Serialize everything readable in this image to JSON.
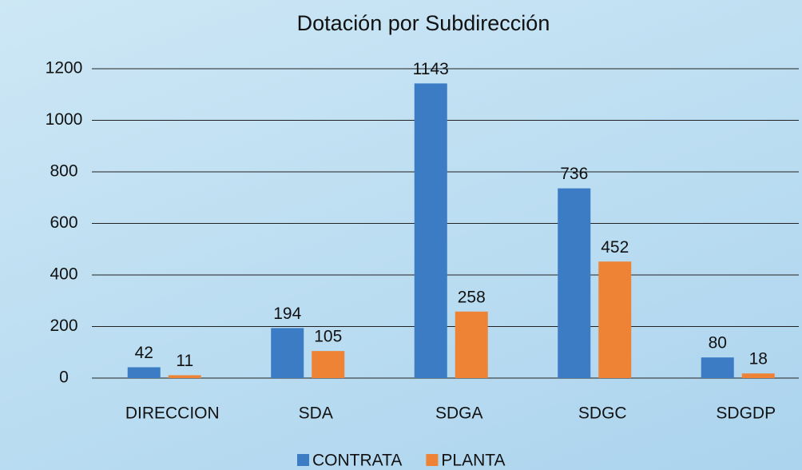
{
  "chart_data": {
    "type": "bar",
    "title": "Dotación por Subdirección",
    "categories": [
      "DIRECCION",
      "SDA",
      "SDGA",
      "SDGC",
      "SDGDP"
    ],
    "series": [
      {
        "name": "CONTRATA",
        "color": "#3b7cc4",
        "values": [
          42,
          194,
          1143,
          736,
          80
        ]
      },
      {
        "name": "PLANTA",
        "color": "#ee8336",
        "values": [
          11,
          105,
          258,
          452,
          18
        ]
      }
    ],
    "ylim": [
      0,
      1200
    ],
    "yticks": [
      0,
      200,
      400,
      600,
      800,
      1000,
      1200
    ],
    "grid": true,
    "legend": "bottom"
  }
}
